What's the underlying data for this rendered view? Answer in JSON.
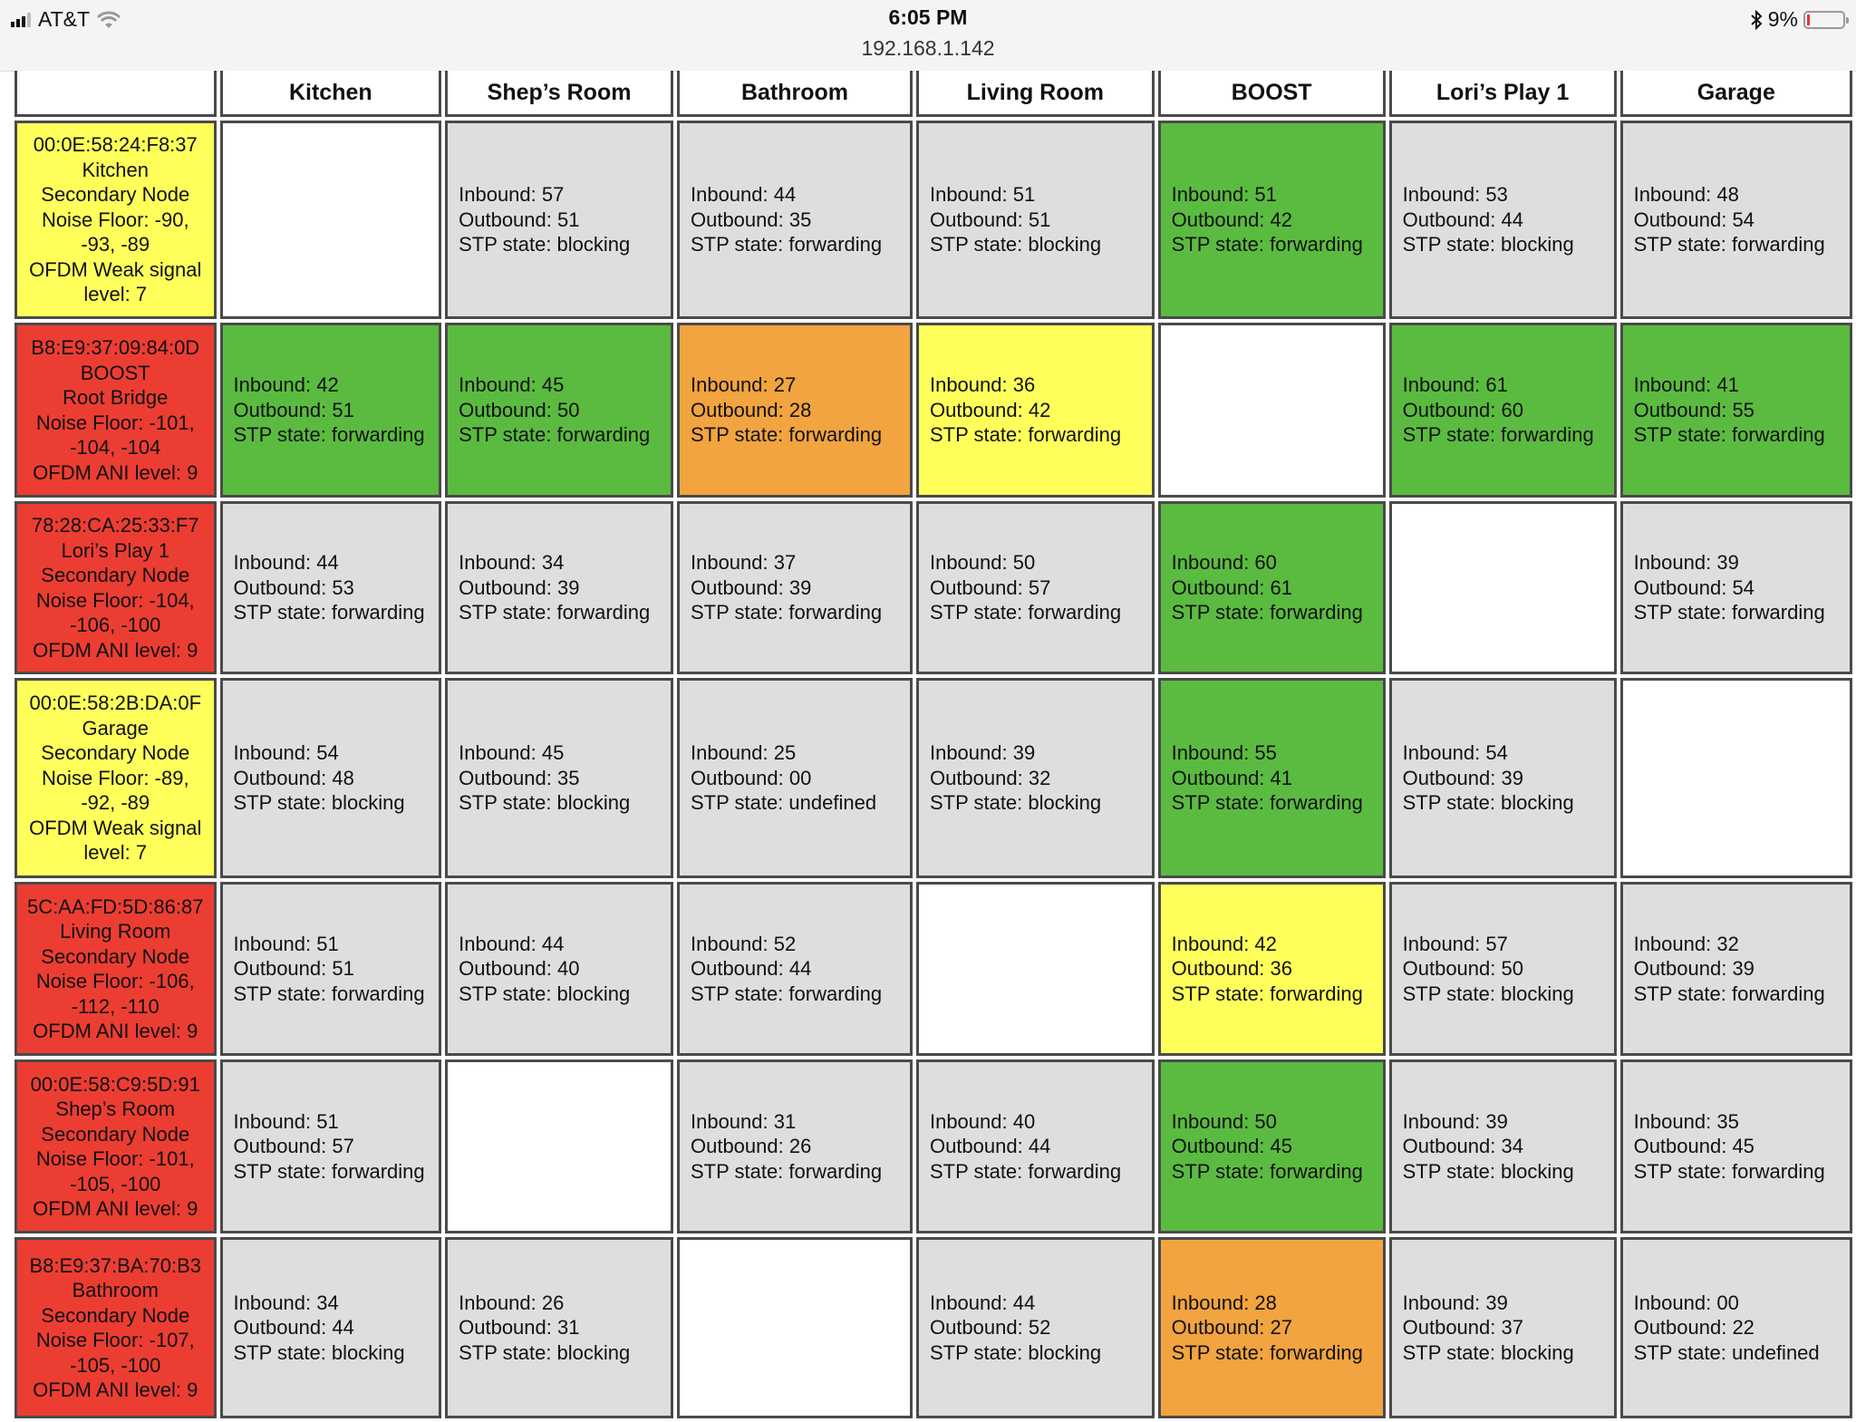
{
  "status_bar": {
    "carrier": "AT&T",
    "time": "6:05 PM",
    "url": "192.168.1.142",
    "battery": "9%",
    "battery_level": 0.09,
    "icons": [
      "signal-icon",
      "wifi-icon",
      "bluetooth-icon",
      "battery-icon"
    ]
  },
  "colors": {
    "yellow": "#ffff5b",
    "red": "#ec3d33",
    "green": "#5bbb40",
    "orange": "#f1a43f",
    "gray": "#dedede",
    "blank": "#ffffff"
  },
  "table": {
    "columns": [
      "",
      "Kitchen",
      "Shep’s Room",
      "Bathroom",
      "Living Room",
      "BOOST",
      "Lori’s Play 1",
      "Garage"
    ],
    "rows": [
      {
        "color": "yellow",
        "lines": [
          "00:0E:58:24:F8:37",
          "Kitchen",
          "Secondary Node",
          "Noise Floor: -90,",
          "-93, -89",
          "OFDM Weak signal",
          "level: 7"
        ],
        "cells": [
          {
            "color": "blank"
          },
          {
            "color": "gray",
            "inbound": "Inbound: 57",
            "outbound": "Outbound: 51",
            "stp": "STP state: blocking"
          },
          {
            "color": "gray",
            "inbound": "Inbound: 44",
            "outbound": "Outbound: 35",
            "stp": "STP state: forwarding"
          },
          {
            "color": "gray",
            "inbound": "Inbound: 51",
            "outbound": "Outbound: 51",
            "stp": "STP state: blocking"
          },
          {
            "color": "green",
            "inbound": "Inbound: 51",
            "outbound": "Outbound: 42",
            "stp": "STP state: forwarding"
          },
          {
            "color": "gray",
            "inbound": "Inbound: 53",
            "outbound": "Outbound: 44",
            "stp": "STP state: blocking"
          },
          {
            "color": "gray",
            "inbound": "Inbound: 48",
            "outbound": "Outbound: 54",
            "stp": "STP state: forwarding"
          }
        ]
      },
      {
        "color": "red",
        "lines": [
          "B8:E9:37:09:84:0D",
          "BOOST",
          "Root Bridge",
          "Noise Floor: -101,",
          "-104, -104",
          "OFDM ANI level: 9"
        ],
        "cells": [
          {
            "color": "green",
            "inbound": "Inbound: 42",
            "outbound": "Outbound: 51",
            "stp": "STP state: forwarding"
          },
          {
            "color": "green",
            "inbound": "Inbound: 45",
            "outbound": "Outbound: 50",
            "stp": "STP state: forwarding"
          },
          {
            "color": "orange",
            "inbound": "Inbound: 27",
            "outbound": "Outbound: 28",
            "stp": "STP state: forwarding"
          },
          {
            "color": "yellow",
            "inbound": "Inbound: 36",
            "outbound": "Outbound: 42",
            "stp": "STP state: forwarding"
          },
          {
            "color": "blank"
          },
          {
            "color": "green",
            "inbound": "Inbound: 61",
            "outbound": "Outbound: 60",
            "stp": "STP state: forwarding"
          },
          {
            "color": "green",
            "inbound": "Inbound: 41",
            "outbound": "Outbound: 55",
            "stp": "STP state: forwarding"
          }
        ]
      },
      {
        "color": "red",
        "lines": [
          "78:28:CA:25:33:F7",
          "Lori’s Play 1",
          "Secondary Node",
          "Noise Floor: -104,",
          "-106, -100",
          "OFDM ANI level: 9"
        ],
        "cells": [
          {
            "color": "gray",
            "inbound": "Inbound: 44",
            "outbound": "Outbound: 53",
            "stp": "STP state: forwarding"
          },
          {
            "color": "gray",
            "inbound": "Inbound: 34",
            "outbound": "Outbound: 39",
            "stp": "STP state: forwarding"
          },
          {
            "color": "gray",
            "inbound": "Inbound: 37",
            "outbound": "Outbound: 39",
            "stp": "STP state: forwarding"
          },
          {
            "color": "gray",
            "inbound": "Inbound: 50",
            "outbound": "Outbound: 57",
            "stp": "STP state: forwarding"
          },
          {
            "color": "green",
            "inbound": "Inbound: 60",
            "outbound": "Outbound: 61",
            "stp": "STP state: forwarding"
          },
          {
            "color": "blank"
          },
          {
            "color": "gray",
            "inbound": "Inbound: 39",
            "outbound": "Outbound: 54",
            "stp": "STP state: forwarding"
          }
        ]
      },
      {
        "color": "yellow",
        "lines": [
          "00:0E:58:2B:DA:0F",
          "Garage",
          "Secondary Node",
          "Noise Floor: -89,",
          "-92, -89",
          "OFDM Weak signal",
          "level: 7"
        ],
        "cells": [
          {
            "color": "gray",
            "inbound": "Inbound: 54",
            "outbound": "Outbound: 48",
            "stp": "STP state: blocking"
          },
          {
            "color": "gray",
            "inbound": "Inbound: 45",
            "outbound": "Outbound: 35",
            "stp": "STP state: blocking"
          },
          {
            "color": "gray",
            "inbound": "Inbound: 25",
            "outbound": "Outbound: 00",
            "stp": "STP state: undefined"
          },
          {
            "color": "gray",
            "inbound": "Inbound: 39",
            "outbound": "Outbound: 32",
            "stp": "STP state: blocking"
          },
          {
            "color": "green",
            "inbound": "Inbound: 55",
            "outbound": "Outbound: 41",
            "stp": "STP state: forwarding"
          },
          {
            "color": "gray",
            "inbound": "Inbound: 54",
            "outbound": "Outbound: 39",
            "stp": "STP state: blocking"
          },
          {
            "color": "blank"
          }
        ]
      },
      {
        "color": "red",
        "lines": [
          "5C:AA:FD:5D:86:87",
          "Living Room",
          "Secondary Node",
          "Noise Floor: -106,",
          "-112, -110",
          "OFDM ANI level: 9"
        ],
        "cells": [
          {
            "color": "gray",
            "inbound": "Inbound: 51",
            "outbound": "Outbound: 51",
            "stp": "STP state: forwarding"
          },
          {
            "color": "gray",
            "inbound": "Inbound: 44",
            "outbound": "Outbound: 40",
            "stp": "STP state: blocking"
          },
          {
            "color": "gray",
            "inbound": "Inbound: 52",
            "outbound": "Outbound: 44",
            "stp": "STP state: forwarding"
          },
          {
            "color": "blank"
          },
          {
            "color": "yellow",
            "inbound": "Inbound: 42",
            "outbound": "Outbound: 36",
            "stp": "STP state: forwarding"
          },
          {
            "color": "gray",
            "inbound": "Inbound: 57",
            "outbound": "Outbound: 50",
            "stp": "STP state: blocking"
          },
          {
            "color": "gray",
            "inbound": "Inbound: 32",
            "outbound": "Outbound: 39",
            "stp": "STP state: forwarding"
          }
        ]
      },
      {
        "color": "red",
        "lines": [
          "00:0E:58:C9:5D:91",
          "Shep’s Room",
          "Secondary Node",
          "Noise Floor: -101,",
          "-105, -100",
          "OFDM ANI level: 9"
        ],
        "cells": [
          {
            "color": "gray",
            "inbound": "Inbound: 51",
            "outbound": "Outbound: 57",
            "stp": "STP state: forwarding"
          },
          {
            "color": "blank"
          },
          {
            "color": "gray",
            "inbound": "Inbound: 31",
            "outbound": "Outbound: 26",
            "stp": "STP state: forwarding"
          },
          {
            "color": "gray",
            "inbound": "Inbound: 40",
            "outbound": "Outbound: 44",
            "stp": "STP state: forwarding"
          },
          {
            "color": "green",
            "inbound": "Inbound: 50",
            "outbound": "Outbound: 45",
            "stp": "STP state: forwarding"
          },
          {
            "color": "gray",
            "inbound": "Inbound: 39",
            "outbound": "Outbound: 34",
            "stp": "STP state: blocking"
          },
          {
            "color": "gray",
            "inbound": "Inbound: 35",
            "outbound": "Outbound: 45",
            "stp": "STP state: forwarding"
          }
        ]
      },
      {
        "color": "red",
        "lines": [
          "B8:E9:37:BA:70:B3",
          "Bathroom",
          "Secondary Node",
          "Noise Floor: -107,",
          "-105, -100",
          "OFDM ANI level: 9"
        ],
        "cells": [
          {
            "color": "gray",
            "inbound": "Inbound: 34",
            "outbound": "Outbound: 44",
            "stp": "STP state: blocking"
          },
          {
            "color": "gray",
            "inbound": "Inbound: 26",
            "outbound": "Outbound: 31",
            "stp": "STP state: blocking"
          },
          {
            "color": "blank"
          },
          {
            "color": "gray",
            "inbound": "Inbound: 44",
            "outbound": "Outbound: 52",
            "stp": "STP state: blocking"
          },
          {
            "color": "orange",
            "inbound": "Inbound: 28",
            "outbound": "Outbound: 27",
            "stp": "STP state: forwarding"
          },
          {
            "color": "gray",
            "inbound": "Inbound: 39",
            "outbound": "Outbound: 37",
            "stp": "STP state: blocking"
          },
          {
            "color": "gray",
            "inbound": "Inbound: 00",
            "outbound": "Outbound: 22",
            "stp": "STP state: undefined"
          }
        ]
      }
    ]
  }
}
